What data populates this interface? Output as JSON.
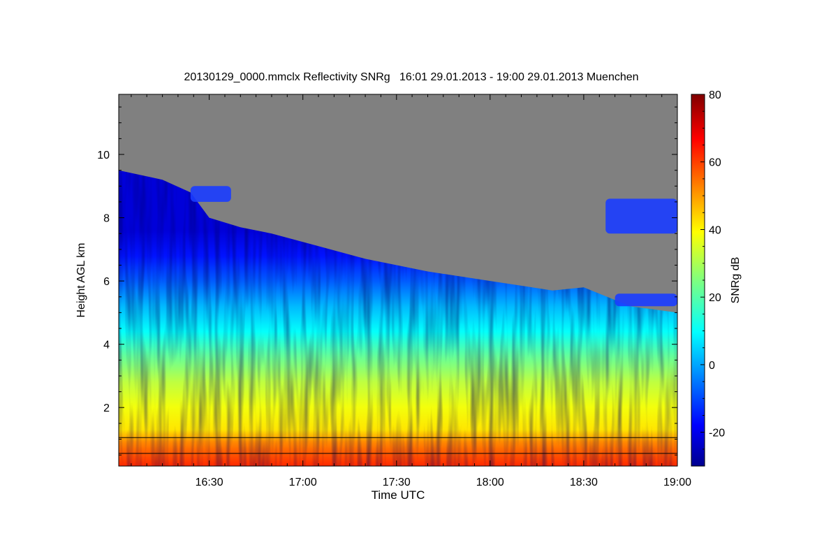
{
  "chart_data": {
    "type": "heatmap",
    "title": "20130129_0000.mmclx Reflectivity SNRg   16:01 29.01.2013 - 19:00 29.01.2013 Muenchen",
    "xlabel": "Time UTC",
    "ylabel": "Height AGL km",
    "xlim": [
      "16:01",
      "19:00"
    ],
    "xlim_minutes": [
      961,
      1140
    ],
    "x_ticks": [
      {
        "label": "16:30",
        "minute": 990
      },
      {
        "label": "17:00",
        "minute": 1020
      },
      {
        "label": "17:30",
        "minute": 1050
      },
      {
        "label": "18:00",
        "minute": 1080
      },
      {
        "label": "18:30",
        "minute": 1110
      },
      {
        "label": "19:00",
        "minute": 1140
      }
    ],
    "ylim": [
      0.15,
      11.9
    ],
    "y_ticks": [
      2,
      4,
      6,
      8,
      10
    ],
    "colorbar": {
      "label": "SNRg dB",
      "range": [
        -30,
        80
      ],
      "ticks": [
        -20,
        0,
        20,
        40,
        60,
        80
      ],
      "colormap": "jet"
    },
    "background_color": "#808080",
    "echo_top_km": [
      {
        "minute": 961,
        "height": 9.5
      },
      {
        "minute": 975,
        "height": 9.2
      },
      {
        "minute": 984,
        "height": 8.8
      },
      {
        "minute": 990,
        "height": 8.0
      },
      {
        "minute": 1000,
        "height": 7.7
      },
      {
        "minute": 1010,
        "height": 7.5
      },
      {
        "minute": 1025,
        "height": 7.1
      },
      {
        "minute": 1040,
        "height": 6.7
      },
      {
        "minute": 1060,
        "height": 6.3
      },
      {
        "minute": 1080,
        "height": 6.0
      },
      {
        "minute": 1100,
        "height": 5.7
      },
      {
        "minute": 1110,
        "height": 5.8
      },
      {
        "minute": 1125,
        "height": 5.2
      },
      {
        "minute": 1140,
        "height": 5.0
      }
    ],
    "upper_echo_patches": [
      {
        "minute_start": 984,
        "minute_end": 997,
        "height_bottom": 8.5,
        "height_top": 9.0
      },
      {
        "minute_start": 1117,
        "minute_end": 1140,
        "height_bottom": 7.5,
        "height_top": 8.6
      },
      {
        "minute_start": 1120,
        "minute_end": 1140,
        "height_bottom": 5.2,
        "height_top": 5.6
      }
    ],
    "snr_profile_db": [
      {
        "height": 0.2,
        "snr": 62
      },
      {
        "height": 0.6,
        "snr": 58
      },
      {
        "height": 1.1,
        "snr": 52
      },
      {
        "height": 1.3,
        "snr": 48
      },
      {
        "height": 1.6,
        "snr": 42
      },
      {
        "height": 2.5,
        "snr": 38
      },
      {
        "height": 3.5,
        "snr": 32
      },
      {
        "height": 4.5,
        "snr": 22
      },
      {
        "height": 5.5,
        "snr": 10
      },
      {
        "height": 6.5,
        "snr": 2
      },
      {
        "height": 7.5,
        "snr": -8
      },
      {
        "height": 8.5,
        "snr": -16
      },
      {
        "height": 9.5,
        "snr": -22
      }
    ],
    "reference_lines_km": [
      1.05,
      0.55
    ],
    "grid": false,
    "legend": "colorbar-right"
  }
}
